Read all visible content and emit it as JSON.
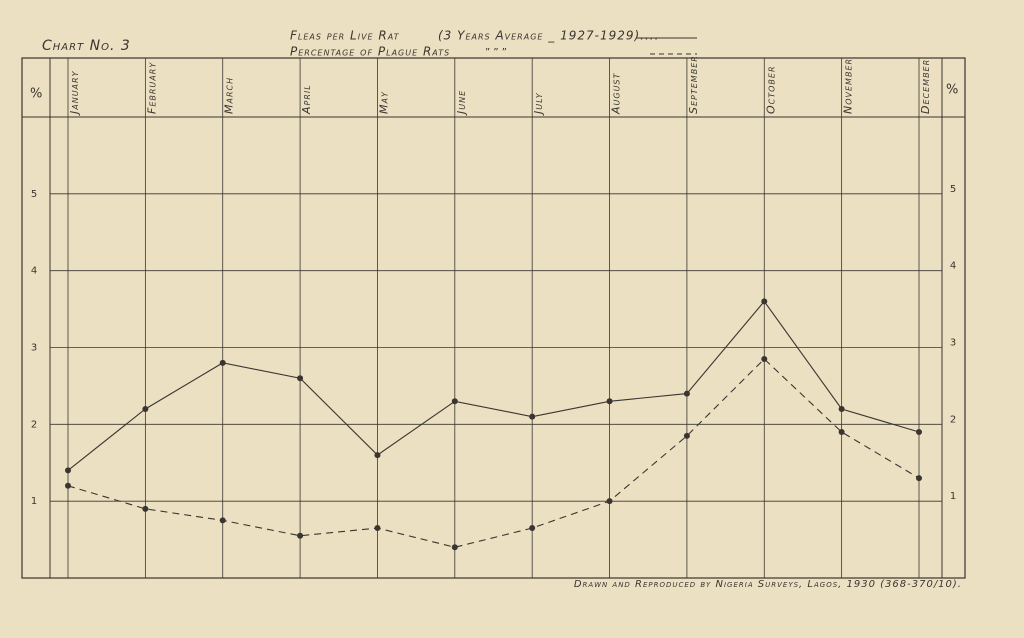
{
  "chart_data": {
    "type": "line",
    "title": "Chart No. 3",
    "subtitle": "(3 Years Average _ 1927-1929)....",
    "ditto": "”          ”          ”",
    "credit": "Drawn and Reproduced by Nigeria Surveys, Lagos, 1930 (368-370/10).",
    "y_unit": "%",
    "categories": [
      "January",
      "February",
      "March",
      "April",
      "May",
      "June",
      "July",
      "August",
      "September",
      "October",
      "November",
      "December"
    ],
    "series": [
      {
        "name": "Fleas per Live Rat",
        "color": "#3a3530",
        "dash": false,
        "values": [
          1.4,
          2.2,
          2.8,
          2.6,
          1.6,
          2.3,
          2.1,
          2.3,
          2.4,
          3.6,
          2.2,
          1.9
        ]
      },
      {
        "name": "Percentage of Plague Rats",
        "color": "#3a3530",
        "dash": true,
        "values": [
          1.2,
          0.9,
          0.75,
          0.55,
          0.65,
          0.4,
          0.65,
          1.0,
          1.85,
          2.85,
          1.9,
          1.3
        ]
      }
    ],
    "ylim": [
      0,
      6
    ],
    "yticks": [
      1,
      2,
      3,
      4,
      5
    ],
    "grid": true
  }
}
